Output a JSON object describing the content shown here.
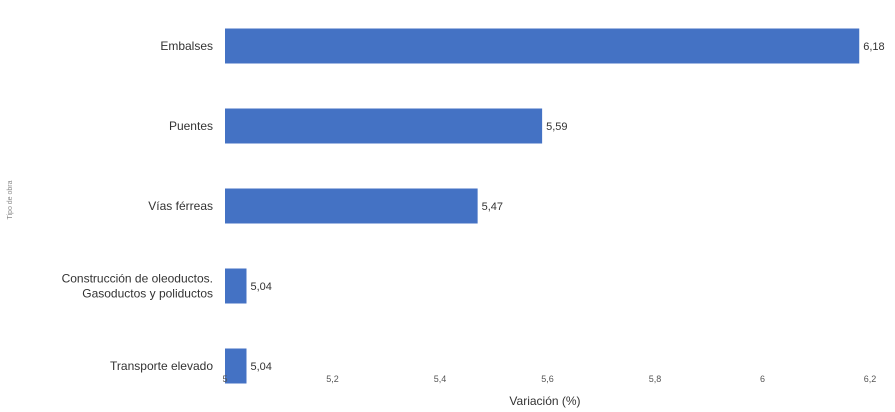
{
  "chart_data": {
    "type": "bar",
    "orientation": "horizontal",
    "categories": [
      [
        "Embalses"
      ],
      [
        "Puentes"
      ],
      [
        "Vías férreas"
      ],
      [
        "Construcción de oleoductos.",
        "Gasoductos y poliductos"
      ],
      [
        "Transporte elevado"
      ]
    ],
    "values": [
      6.18,
      5.59,
      5.47,
      5.04,
      5.04
    ],
    "value_labels": [
      "6,18",
      "5,59",
      "5,47",
      "5,04",
      "5,04"
    ],
    "xlabel": "Variación (%)",
    "ylabel": "Tipo de obra",
    "xlim": [
      5,
      6.2
    ],
    "x_ticks": [
      5,
      5.2,
      5.4,
      5.6,
      5.8,
      6,
      6.2
    ],
    "x_tick_labels": [
      "5",
      "5,2",
      "5,4",
      "5,6",
      "5,8",
      "6",
      "6,2"
    ],
    "grid": false,
    "legend": "none",
    "colors": {
      "bar": "#4472c4"
    }
  }
}
